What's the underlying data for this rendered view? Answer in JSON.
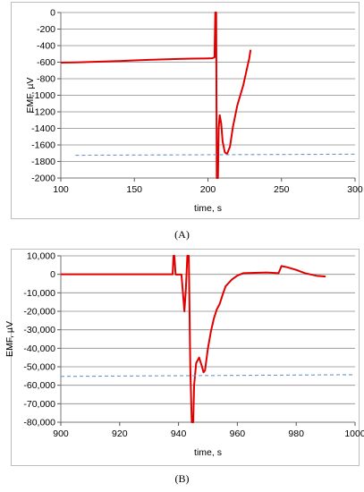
{
  "charts": [
    {
      "type": "line",
      "caption": "(A)",
      "xlabel": "time, s",
      "ylabel": "EMF, µV",
      "xlim": [
        100,
        300
      ],
      "ylim": [
        -2000,
        0
      ],
      "xticks": [
        100,
        150,
        200,
        250,
        300
      ],
      "yticks": [
        0,
        -200,
        -400,
        -600,
        -800,
        -1000,
        -1200,
        -1400,
        -1600,
        -1800,
        -2000
      ],
      "ytick_labels": [
        "0",
        "-200",
        "-400",
        "-600",
        "-800",
        "-1000",
        "-1200",
        "-1400",
        "-1600",
        "-1800",
        "-2000"
      ],
      "grid": "horizontal",
      "series": [
        {
          "color": "#e00000",
          "style": "solid",
          "points": [
            [
              100,
              -605
            ],
            [
              110,
              -602
            ],
            [
              120,
              -598
            ],
            [
              130,
              -592
            ],
            [
              140,
              -586
            ],
            [
              150,
              -578
            ],
            [
              160,
              -572
            ],
            [
              170,
              -566
            ],
            [
              180,
              -561
            ],
            [
              190,
              -557
            ],
            [
              198,
              -555
            ],
            [
              203,
              -553
            ],
            [
              204.5,
              -540
            ],
            [
              205,
              0
            ],
            [
              205.6,
              0
            ],
            [
              206,
              -2000
            ],
            [
              206.8,
              -2000
            ],
            [
              207.3,
              -1400
            ],
            [
              208,
              -1240
            ],
            [
              209,
              -1340
            ],
            [
              210,
              -1560
            ],
            [
              211.5,
              -1690
            ],
            [
              213,
              -1710
            ],
            [
              215,
              -1620
            ],
            [
              217,
              -1380
            ],
            [
              220,
              -1120
            ],
            [
              224,
              -880
            ],
            [
              228,
              -560
            ],
            [
              229,
              -450
            ]
          ]
        },
        {
          "color": "#6a96c8",
          "style": "dashed",
          "points": [
            [
              110,
              -1725
            ],
            [
              300,
              -1712
            ]
          ]
        }
      ]
    },
    {
      "type": "line",
      "caption": "(B)",
      "xlabel": "time, s",
      "ylabel": "EMF, µV",
      "xlim": [
        900,
        1000
      ],
      "ylim": [
        -80000,
        10000
      ],
      "xticks": [
        900,
        920,
        940,
        960,
        980,
        1000
      ],
      "yticks": [
        10000,
        0,
        -10000,
        -20000,
        -30000,
        -40000,
        -50000,
        -60000,
        -70000,
        -80000
      ],
      "ytick_labels": [
        "10,000",
        "0",
        "-10,000",
        "-20,000",
        "-30,000",
        "-40,000",
        "-50,000",
        "-60,000",
        "-70,000",
        "-80,000"
      ],
      "grid": "horizontal",
      "series": [
        {
          "color": "#e00000",
          "style": "solid",
          "points": [
            [
              900,
              0
            ],
            [
              920,
              0
            ],
            [
              935,
              0
            ],
            [
              938,
              0
            ],
            [
              938.3,
              10000
            ],
            [
              938.6,
              10000
            ],
            [
              939,
              -100
            ],
            [
              941,
              -100
            ],
            [
              941.5,
              -10000
            ],
            [
              942,
              -20000
            ],
            [
              942.5,
              -8000
            ],
            [
              943,
              10000
            ],
            [
              943.5,
              10000
            ],
            [
              944,
              -50000
            ],
            [
              944.5,
              -80000
            ],
            [
              945,
              -80000
            ],
            [
              945.3,
              -60000
            ],
            [
              946,
              -48000
            ],
            [
              947,
              -45000
            ],
            [
              948,
              -50000
            ],
            [
              948.5,
              -53000
            ],
            [
              949,
              -52000
            ],
            [
              950,
              -40000
            ],
            [
              951,
              -31000
            ],
            [
              952,
              -24000
            ],
            [
              953,
              -19000
            ],
            [
              954,
              -16000
            ],
            [
              955,
              -11000
            ],
            [
              956,
              -6500
            ],
            [
              958,
              -3000
            ],
            [
              960,
              -700
            ],
            [
              962,
              600
            ],
            [
              966,
              800
            ],
            [
              970,
              1000
            ],
            [
              972,
              800
            ],
            [
              974,
              600
            ],
            [
              975,
              4500
            ],
            [
              977,
              3800
            ],
            [
              980,
              2400
            ],
            [
              983,
              600
            ],
            [
              987,
              -800
            ],
            [
              990,
              -1200
            ]
          ]
        },
        {
          "color": "#6a96c8",
          "style": "dashed",
          "points": [
            [
              900,
              -55200
            ],
            [
              1000,
              -54300
            ]
          ]
        }
      ]
    }
  ]
}
